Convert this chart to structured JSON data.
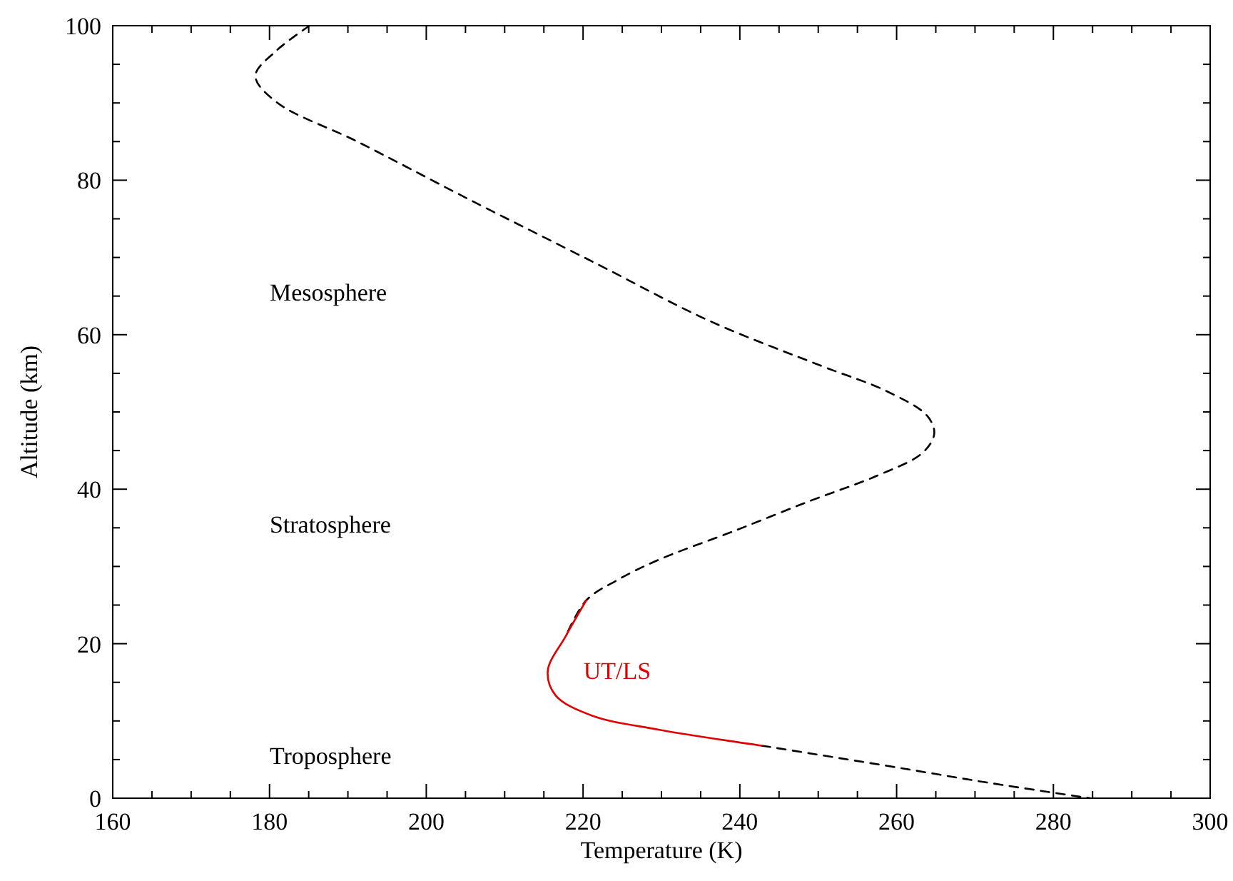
{
  "chart_data": {
    "type": "line",
    "xlabel": "Temperature (K)",
    "ylabel": "Altitude (km)",
    "xlim": [
      160,
      300
    ],
    "ylim": [
      0,
      100
    ],
    "xticks": [
      160,
      {
        "value": 165,
        "label": null
      },
      {
        "value": 170,
        "label": null
      },
      {
        "value": 175,
        "label": null
      },
      180,
      {
        "value": 185,
        "label": null
      },
      {
        "value": 190,
        "label": null
      },
      {
        "value": 195,
        "label": null
      },
      200,
      {
        "value": 205,
        "label": null
      },
      {
        "value": 210,
        "label": null
      },
      {
        "value": 215,
        "label": null
      },
      220,
      {
        "value": 225,
        "label": null
      },
      {
        "value": 230,
        "label": null
      },
      {
        "value": 235,
        "label": null
      },
      240,
      {
        "value": 245,
        "label": null
      },
      {
        "value": 250,
        "label": null
      },
      {
        "value": 255,
        "label": null
      },
      260,
      {
        "value": 265,
        "label": null
      },
      {
        "value": 270,
        "label": null
      },
      {
        "value": 275,
        "label": null
      },
      280,
      {
        "value": 285,
        "label": null
      },
      {
        "value": 290,
        "label": null
      },
      {
        "value": 295,
        "label": null
      },
      300
    ],
    "yticks": [
      0,
      {
        "value": 5,
        "label": null
      },
      {
        "value": 10,
        "label": null
      },
      {
        "value": 15,
        "label": null
      },
      20,
      {
        "value": 25,
        "label": null
      },
      {
        "value": 30,
        "label": null
      },
      {
        "value": 35,
        "label": null
      },
      40,
      {
        "value": 45,
        "label": null
      },
      {
        "value": 50,
        "label": null
      },
      {
        "value": 55,
        "label": null
      },
      60,
      {
        "value": 65,
        "label": null
      },
      {
        "value": 70,
        "label": null
      },
      {
        "value": 75,
        "label": null
      },
      80,
      {
        "value": 85,
        "label": null
      },
      {
        "value": 90,
        "label": null
      },
      {
        "value": 95,
        "label": null
      },
      100
    ],
    "grid": false,
    "marker": "none",
    "series": [
      {
        "color": "#000000",
        "line_style": "dashed",
        "x": [
          185.1,
          180.8,
          178.2,
          180.9,
          191.2,
          205.1,
          221.5,
          236.1,
          250.3,
          258.7,
          263.9,
          264.8,
          263.3,
          257.4,
          249.0,
          239.3,
          229.5,
          224.3,
          220.4,
          217.8,
          null,
          null,
          null,
          null,
          242.8,
          258.7,
          271.7,
          284.7
        ],
        "values": [
          100,
          96.7,
          93.5,
          90.1,
          85.0,
          77.7,
          69.3,
          61.8,
          56.0,
          52.7,
          49.5,
          47.2,
          44.7,
          41.7,
          38.5,
          34.6,
          30.8,
          28.2,
          25.6,
          21.0,
          null,
          null,
          null,
          null,
          6.8,
          4.2,
          2.0,
          0
        ]
      },
      {
        "name": "UT/LS",
        "color": "#e00000",
        "line_style": "solid",
        "x": [
          220.4,
          217.8,
          215.5,
          216.5,
          221.1,
          229.5,
          242.8
        ],
        "values": [
          25.6,
          21.0,
          16.5,
          13.3,
          10.7,
          8.9,
          6.8
        ]
      }
    ],
    "annotations": [
      "Mesosphere",
      "Stratosphere",
      "Troposphere"
    ]
  }
}
